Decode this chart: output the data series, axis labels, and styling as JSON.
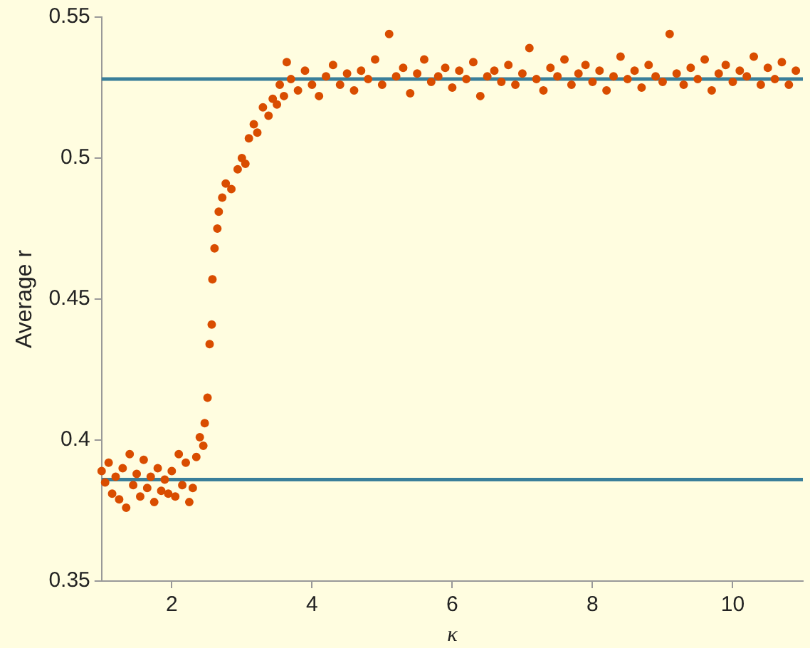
{
  "chart_data": {
    "type": "scatter",
    "xlabel": "κ",
    "ylabel": "Average r",
    "x": [
      1.0,
      1.05,
      1.1,
      1.15,
      1.2,
      1.25,
      1.3,
      1.35,
      1.4,
      1.45,
      1.5,
      1.55,
      1.6,
      1.65,
      1.7,
      1.75,
      1.8,
      1.85,
      1.9,
      1.95,
      2.0,
      2.05,
      2.1,
      2.15,
      2.2,
      2.25,
      2.3,
      2.35,
      2.4,
      2.45,
      2.47,
      2.51,
      2.54,
      2.57,
      2.58,
      2.61,
      2.65,
      2.67,
      2.72,
      2.77,
      2.85,
      2.94,
      3.0,
      3.05,
      3.1,
      3.17,
      3.22,
      3.3,
      3.38,
      3.44,
      3.5,
      3.54,
      3.6,
      3.64,
      3.7,
      3.8,
      3.9,
      4.0,
      4.1,
      4.2,
      4.3,
      4.4,
      4.5,
      4.6,
      4.7,
      4.8,
      4.9,
      5.0,
      5.1,
      5.2,
      5.3,
      5.4,
      5.5,
      5.6,
      5.7,
      5.8,
      5.9,
      6.0,
      6.1,
      6.2,
      6.3,
      6.4,
      6.5,
      6.6,
      6.7,
      6.8,
      6.9,
      7.0,
      7.1,
      7.2,
      7.3,
      7.4,
      7.5,
      7.6,
      7.7,
      7.8,
      7.9,
      8.0,
      8.1,
      8.2,
      8.3,
      8.4,
      8.5,
      8.6,
      8.7,
      8.8,
      8.9,
      9.0,
      9.1,
      9.2,
      9.3,
      9.4,
      9.5,
      9.6,
      9.7,
      9.8,
      9.9,
      10.0,
      10.1,
      10.2,
      10.3,
      10.4,
      10.5,
      10.6,
      10.7,
      10.8,
      10.9
    ],
    "series": [
      {
        "color": "#d94d00",
        "values": [
          0.389,
          0.385,
          0.392,
          0.381,
          0.387,
          0.379,
          0.39,
          0.376,
          0.395,
          0.384,
          0.388,
          0.38,
          0.393,
          0.383,
          0.387,
          0.378,
          0.39,
          0.382,
          0.386,
          0.381,
          0.389,
          0.38,
          0.395,
          0.384,
          0.392,
          0.378,
          0.383,
          0.394,
          0.401,
          0.398,
          0.406,
          0.415,
          0.434,
          0.441,
          0.457,
          0.468,
          0.475,
          0.481,
          0.486,
          0.491,
          0.489,
          0.496,
          0.5,
          0.498,
          0.507,
          0.512,
          0.509,
          0.518,
          0.515,
          0.521,
          0.519,
          0.526,
          0.522,
          0.534,
          0.528,
          0.524,
          0.531,
          0.526,
          0.522,
          0.529,
          0.533,
          0.526,
          0.53,
          0.524,
          0.531,
          0.528,
          0.535,
          0.526,
          0.544,
          0.529,
          0.532,
          0.523,
          0.53,
          0.535,
          0.527,
          0.529,
          0.532,
          0.525,
          0.531,
          0.528,
          0.534,
          0.522,
          0.529,
          0.531,
          0.527,
          0.533,
          0.526,
          0.53,
          0.539,
          0.528,
          0.524,
          0.532,
          0.529,
          0.535,
          0.526,
          0.53,
          0.533,
          0.527,
          0.531,
          0.524,
          0.529,
          0.536,
          0.528,
          0.531,
          0.525,
          0.533,
          0.529,
          0.527,
          0.544,
          0.53,
          0.526,
          0.532,
          0.528,
          0.535,
          0.524,
          0.53,
          0.533,
          0.527,
          0.531,
          0.529,
          0.536,
          0.526,
          0.532,
          0.528,
          0.534,
          0.526,
          0.531
        ]
      }
    ],
    "marker": "circle",
    "grid": false,
    "legend": false,
    "xlim": [
      1,
      11
    ],
    "xticks": [
      2,
      4,
      6,
      8,
      10
    ],
    "ylim": [
      0.35,
      0.55
    ],
    "yticks": [
      0.35,
      0.4,
      0.45,
      0.5,
      0.55
    ],
    "ref_lines": [
      {
        "axis": "y",
        "value": 0.528,
        "color": "#3a7f9a"
      },
      {
        "axis": "y",
        "value": 0.386,
        "color": "#3a7f9a"
      }
    ]
  }
}
